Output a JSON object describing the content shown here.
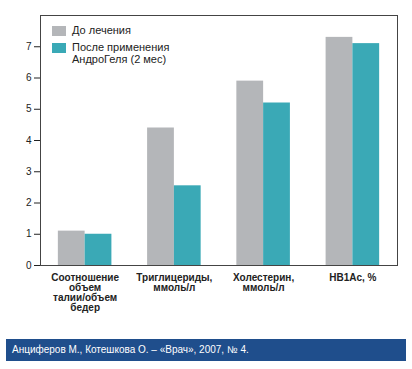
{
  "chart_data": {
    "type": "bar",
    "categories": [
      "Соотношение объем талии/объем бедер",
      "Триглицериды, ммоль/л",
      "Холестерин, ммоль/л",
      "HB1Ac, %"
    ],
    "series": [
      {
        "name": "До лечения",
        "color": "#b4b6b9",
        "values": [
          1.1,
          4.4,
          5.9,
          7.3
        ]
      },
      {
        "name": "После применения АндроГеля (2 мес)",
        "color": "#3aa9b6",
        "values": [
          1.0,
          2.55,
          5.2,
          7.1
        ]
      }
    ],
    "ylim": [
      0,
      8
    ],
    "yticks": [
      0,
      1,
      2,
      3,
      4,
      5,
      6,
      7
    ],
    "grid": false,
    "legend": "top-left",
    "caption": "Анциферов М., Котешкова О. – «Врач», 2007, № 4."
  }
}
